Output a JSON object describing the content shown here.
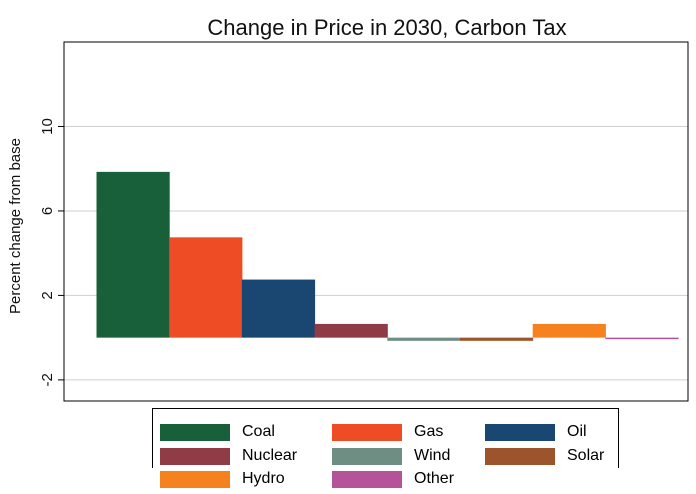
{
  "chart_data": {
    "type": "bar",
    "title": "Change in Price in 2030, Carbon Tax",
    "ylabel": "Percent change from base",
    "xlabel": "",
    "ylim": [
      -3,
      14
    ],
    "yticks": [
      -2,
      2,
      6,
      10
    ],
    "grid": true,
    "legend_position": "bottom",
    "series": [
      {
        "name": "Coal",
        "value": 7.85,
        "color": "#17603a"
      },
      {
        "name": "Gas",
        "value": 4.75,
        "color": "#ee4c24"
      },
      {
        "name": "Oil",
        "value": 2.75,
        "color": "#1a4772"
      },
      {
        "name": "Nuclear",
        "value": 0.65,
        "color": "#903c46"
      },
      {
        "name": "Wind",
        "value": -0.15,
        "color": "#6e8e84"
      },
      {
        "name": "Solar",
        "value": -0.15,
        "color": "#9c542c"
      },
      {
        "name": "Hydro",
        "value": 0.65,
        "color": "#f5821f"
      },
      {
        "name": "Other",
        "value": -0.05,
        "color": "#b4539a"
      }
    ]
  }
}
